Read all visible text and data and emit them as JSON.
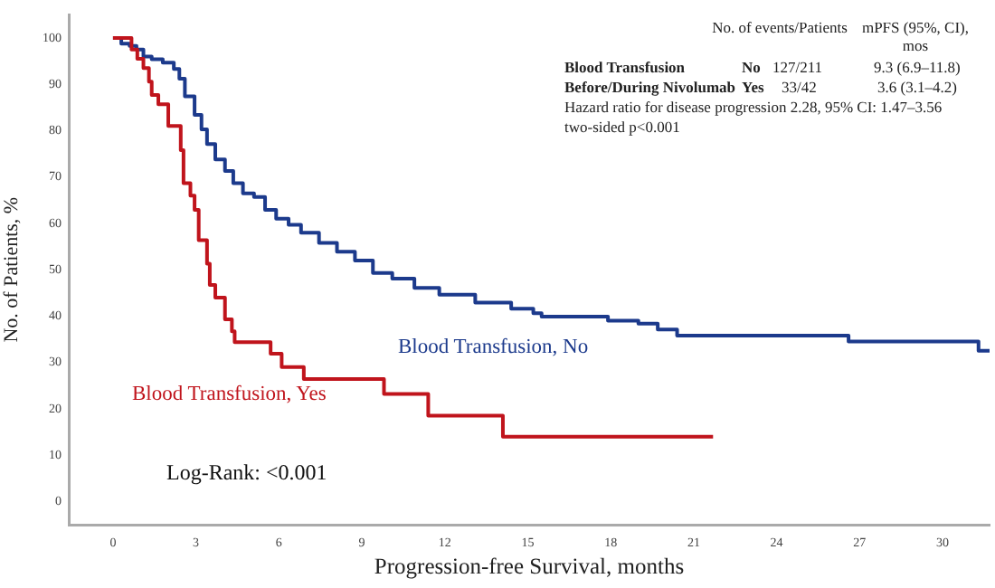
{
  "chart_data": {
    "type": "step",
    "xlabel": "Progression-free Survival, months",
    "ylabel": "No. of Patients, %",
    "xlim": [
      -1.6,
      31.7
    ],
    "xticks": [
      0,
      3,
      6,
      9,
      12,
      15,
      18,
      21,
      24,
      27,
      30
    ],
    "ylim": [
      -5,
      105
    ],
    "yticks": [
      0,
      10,
      20,
      30,
      40,
      50,
      60,
      70,
      80,
      90,
      100
    ],
    "grid": false,
    "legend": false,
    "marker": "none",
    "line_style": "solid",
    "series": [
      {
        "name": "Blood Transfusion, No",
        "color": "#1c3a8c",
        "x": [
          0,
          0.3,
          0.6,
          0.85,
          1.1,
          1.4,
          1.8,
          2.2,
          2.4,
          2.6,
          2.95,
          3.2,
          3.4,
          3.7,
          4.05,
          4.35,
          4.7,
          5.1,
          5.5,
          5.9,
          6.35,
          6.8,
          7.45,
          8.1,
          8.75,
          9.4,
          10.1,
          10.9,
          11.8,
          13.1,
          14.4,
          15.2,
          15.5,
          17.9,
          19.0,
          19.7,
          20.4,
          26.6,
          31.3,
          31.7
        ],
        "values": [
          100,
          98.8,
          98.3,
          97.5,
          96,
          95.4,
          94.7,
          93.3,
          91.2,
          87.4,
          83.4,
          80.3,
          77.1,
          73.8,
          71.3,
          68.7,
          66.5,
          65.7,
          62.9,
          61,
          59.7,
          58,
          55.8,
          53.9,
          52,
          49.3,
          48.1,
          46.1,
          44.6,
          42.9,
          41.6,
          40.6,
          39.9,
          39,
          38.4,
          37.1,
          35.8,
          34.5,
          32.5,
          32.5
        ]
      },
      {
        "name": "Blood Transfusion, Yes",
        "color": "#c0141c",
        "x": [
          0,
          0.67,
          0.88,
          1.1,
          1.3,
          1.4,
          1.64,
          2.0,
          2.45,
          2.55,
          2.8,
          2.95,
          3.1,
          3.4,
          3.5,
          3.7,
          4.05,
          4.3,
          4.4,
          5.7,
          6.1,
          6.9,
          9.8,
          11.4,
          14.1,
          21.7
        ],
        "values": [
          100,
          97.5,
          95.5,
          93.5,
          90.6,
          87.7,
          85.7,
          81,
          75.8,
          68.7,
          66,
          62.9,
          56.4,
          51.3,
          46.7,
          44,
          39.3,
          36.7,
          34.4,
          31.9,
          29,
          26.4,
          23.2,
          18.5,
          14,
          14
        ]
      }
    ],
    "annotations": [
      "No. of events/Patients",
      "mPFS (95%, CI), mos",
      "Blood Transfusion",
      "No",
      "127/211",
      "9.3 (6.9–11.8)",
      "Before/During Nivolumab",
      "Yes",
      "33/42",
      "3.6 (3.1–4.2)",
      "Hazard ratio for disease progression 2.28, 95% CI: 1.47–3.56",
      "two-sided p<0.001",
      "Log-Rank: <0.001"
    ]
  }
}
